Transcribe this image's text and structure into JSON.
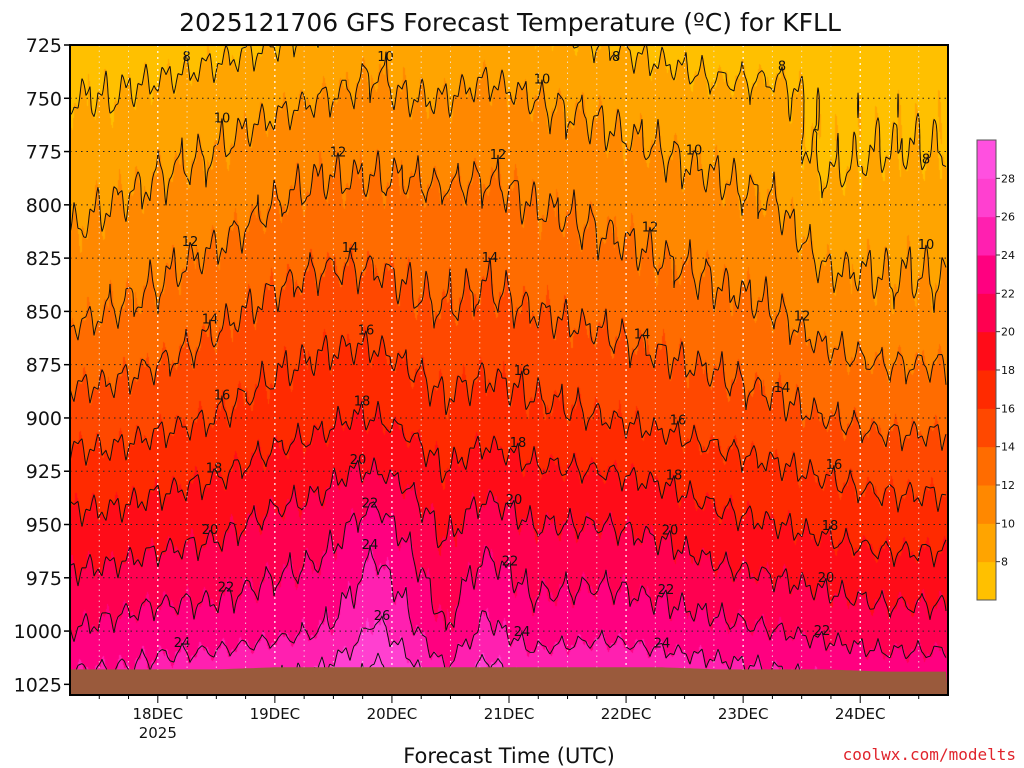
{
  "chart_data": {
    "type": "heatmap",
    "title": "2025121706 GFS Forecast Temperature (ºC) for KFLL",
    "xlabel": "Forecast Time (UTC)",
    "ylabel": "",
    "credit": "coolwx.com/modelts",
    "x_ticks": [
      {
        "day": 18,
        "label": "18DEC",
        "sublabel": "2025"
      },
      {
        "day": 19,
        "label": "19DEC",
        "sublabel": ""
      },
      {
        "day": 20,
        "label": "20DEC",
        "sublabel": ""
      },
      {
        "day": 21,
        "label": "21DEC",
        "sublabel": ""
      },
      {
        "day": 22,
        "label": "22DEC",
        "sublabel": ""
      },
      {
        "day": 23,
        "label": "23DEC",
        "sublabel": ""
      },
      {
        "day": 24,
        "label": "24DEC",
        "sublabel": ""
      }
    ],
    "x_range_days": [
      17.25,
      24.75
    ],
    "y_ticks": [
      725,
      750,
      775,
      800,
      825,
      850,
      875,
      900,
      925,
      950,
      975,
      1000,
      1025
    ],
    "y_range_hpa": [
      1030,
      725
    ],
    "y_axis": "pressure (hPa), inverted",
    "colorbar": {
      "ticks": [
        8,
        10,
        12,
        14,
        16,
        18,
        20,
        22,
        24,
        26,
        28
      ],
      "range": [
        6,
        30
      ],
      "colors": [
        "#ffc000",
        "#ffa400",
        "#ff8800",
        "#ff6c00",
        "#ff4800",
        "#ff2a00",
        "#ff0c18",
        "#ff0050",
        "#ff0080",
        "#ff20b0",
        "#ff40d0",
        "#ff50e0"
      ]
    },
    "profiles": [
      {
        "day": 17.25,
        "surface_hpa": 1018,
        "levels": [
          [
            1018,
            24
          ],
          [
            1000,
            22
          ],
          [
            950,
            18.5
          ],
          [
            900,
            15
          ],
          [
            850,
            11.5
          ],
          [
            800,
            9.5
          ],
          [
            775,
            9
          ],
          [
            750,
            8
          ],
          [
            725,
            7
          ]
        ]
      },
      {
        "day": 17.6,
        "surface_hpa": 1018,
        "levels": [
          [
            1018,
            24
          ],
          [
            1000,
            22.5
          ],
          [
            950,
            18.5
          ],
          [
            900,
            15
          ],
          [
            850,
            12
          ],
          [
            800,
            10
          ],
          [
            775,
            9
          ],
          [
            750,
            8
          ],
          [
            725,
            7
          ]
        ]
      },
      {
        "day": 18.0,
        "surface_hpa": 1018,
        "levels": [
          [
            1018,
            24.5
          ],
          [
            1000,
            23
          ],
          [
            950,
            19
          ],
          [
            900,
            15.5
          ],
          [
            850,
            12.5
          ],
          [
            800,
            10.5
          ],
          [
            775,
            9.5
          ],
          [
            750,
            8.5
          ],
          [
            725,
            7
          ]
        ]
      },
      {
        "day": 18.5,
        "surface_hpa": 1018,
        "levels": [
          [
            1018,
            25
          ],
          [
            1000,
            23
          ],
          [
            950,
            19.5
          ],
          [
            900,
            16
          ],
          [
            850,
            13.5
          ],
          [
            800,
            11
          ],
          [
            775,
            10
          ],
          [
            750,
            9
          ],
          [
            725,
            7.5
          ]
        ]
      },
      {
        "day": 19.0,
        "surface_hpa": 1017,
        "levels": [
          [
            1017,
            25.5
          ],
          [
            1000,
            23.5
          ],
          [
            950,
            20.5
          ],
          [
            900,
            17
          ],
          [
            850,
            14.5
          ],
          [
            800,
            12
          ],
          [
            775,
            11
          ],
          [
            750,
            9.5
          ],
          [
            725,
            8
          ]
        ]
      },
      {
        "day": 19.4,
        "surface_hpa": 1017,
        "levels": [
          [
            1017,
            26
          ],
          [
            1000,
            24
          ],
          [
            950,
            21
          ],
          [
            900,
            17.5
          ],
          [
            850,
            15
          ],
          [
            800,
            12.5
          ],
          [
            775,
            11.5
          ],
          [
            750,
            10
          ],
          [
            725,
            8.5
          ]
        ]
      },
      {
        "day": 19.65,
        "surface_hpa": 1017,
        "levels": [
          [
            1017,
            27
          ],
          [
            1000,
            25
          ],
          [
            950,
            22
          ],
          [
            900,
            18
          ],
          [
            850,
            15
          ],
          [
            800,
            12.5
          ],
          [
            775,
            11.5
          ],
          [
            750,
            10.2
          ],
          [
            725,
            9
          ]
        ]
      },
      {
        "day": 19.85,
        "surface_hpa": 1017,
        "levels": [
          [
            1017,
            28.5
          ],
          [
            1000,
            26.5
          ],
          [
            950,
            23
          ],
          [
            925,
            20
          ],
          [
            900,
            18
          ],
          [
            850,
            15
          ],
          [
            800,
            12.5
          ],
          [
            775,
            11.5
          ],
          [
            750,
            10.5
          ],
          [
            725,
            9.5
          ]
        ]
      },
      {
        "day": 20.1,
        "surface_hpa": 1017,
        "levels": [
          [
            1017,
            27
          ],
          [
            1000,
            25
          ],
          [
            950,
            21.5
          ],
          [
            900,
            17.5
          ],
          [
            850,
            14.5
          ],
          [
            800,
            12.5
          ],
          [
            775,
            11.5
          ],
          [
            750,
            10
          ],
          [
            725,
            9
          ]
        ]
      },
      {
        "day": 20.45,
        "surface_hpa": 1017,
        "levels": [
          [
            1017,
            24
          ],
          [
            1000,
            22
          ],
          [
            950,
            19.5
          ],
          [
            900,
            16.5
          ],
          [
            850,
            14
          ],
          [
            800,
            12.5
          ],
          [
            775,
            11
          ],
          [
            750,
            10
          ],
          [
            725,
            8.5
          ]
        ]
      },
      {
        "day": 20.8,
        "surface_hpa": 1017,
        "levels": [
          [
            1017,
            26.5
          ],
          [
            1000,
            24.5
          ],
          [
            950,
            21
          ],
          [
            900,
            17
          ],
          [
            850,
            14.5
          ],
          [
            800,
            12.5
          ],
          [
            775,
            11.5
          ],
          [
            750,
            10.5
          ],
          [
            725,
            9
          ]
        ]
      },
      {
        "day": 21.2,
        "surface_hpa": 1017,
        "levels": [
          [
            1017,
            25
          ],
          [
            1000,
            23
          ],
          [
            950,
            20
          ],
          [
            900,
            16.5
          ],
          [
            850,
            14
          ],
          [
            800,
            12
          ],
          [
            775,
            11
          ],
          [
            750,
            10
          ],
          [
            725,
            8.5
          ]
        ]
      },
      {
        "day": 21.8,
        "surface_hpa": 1017,
        "levels": [
          [
            1017,
            25.5
          ],
          [
            1000,
            23.5
          ],
          [
            950,
            20
          ],
          [
            900,
            16
          ],
          [
            850,
            13.5
          ],
          [
            800,
            11.5
          ],
          [
            775,
            10.5
          ],
          [
            750,
            9.5
          ],
          [
            725,
            8
          ]
        ]
      },
      {
        "day": 22.3,
        "surface_hpa": 1017,
        "levels": [
          [
            1017,
            25
          ],
          [
            1000,
            23
          ],
          [
            950,
            19.5
          ],
          [
            900,
            15.5
          ],
          [
            850,
            13
          ],
          [
            800,
            11
          ],
          [
            775,
            10
          ],
          [
            750,
            9
          ],
          [
            725,
            7.5
          ]
        ]
      },
      {
        "day": 22.8,
        "surface_hpa": 1018,
        "levels": [
          [
            1018,
            24.5
          ],
          [
            1000,
            22.5
          ],
          [
            950,
            18.5
          ],
          [
            900,
            15
          ],
          [
            850,
            12.5
          ],
          [
            800,
            10.5
          ],
          [
            775,
            9.5
          ],
          [
            750,
            8.5
          ],
          [
            725,
            7
          ]
        ]
      },
      {
        "day": 23.3,
        "surface_hpa": 1018,
        "levels": [
          [
            1018,
            24
          ],
          [
            1000,
            22
          ],
          [
            950,
            18
          ],
          [
            900,
            14.5
          ],
          [
            850,
            12
          ],
          [
            800,
            10
          ],
          [
            775,
            9
          ],
          [
            750,
            8.5
          ],
          [
            725,
            7
          ]
        ]
      },
      {
        "day": 23.7,
        "surface_hpa": 1018,
        "levels": [
          [
            1018,
            23.5
          ],
          [
            1000,
            21.5
          ],
          [
            950,
            17.5
          ],
          [
            900,
            14
          ],
          [
            850,
            11
          ],
          [
            800,
            8.5
          ],
          [
            775,
            7.5
          ],
          [
            750,
            7.5
          ],
          [
            725,
            7
          ]
        ]
      },
      {
        "day": 24.2,
        "surface_hpa": 1019,
        "levels": [
          [
            1019,
            23
          ],
          [
            1000,
            21
          ],
          [
            950,
            17
          ],
          [
            900,
            13.5
          ],
          [
            850,
            10.5
          ],
          [
            800,
            9
          ],
          [
            775,
            8
          ],
          [
            750,
            7.5
          ],
          [
            725,
            7
          ]
        ]
      },
      {
        "day": 24.75,
        "surface_hpa": 1019,
        "levels": [
          [
            1019,
            23
          ],
          [
            1000,
            21
          ],
          [
            950,
            17
          ],
          [
            900,
            13.5
          ],
          [
            850,
            10.5
          ],
          [
            800,
            9
          ],
          [
            775,
            8
          ],
          [
            750,
            7.5
          ],
          [
            725,
            7
          ]
        ]
      }
    ]
  }
}
